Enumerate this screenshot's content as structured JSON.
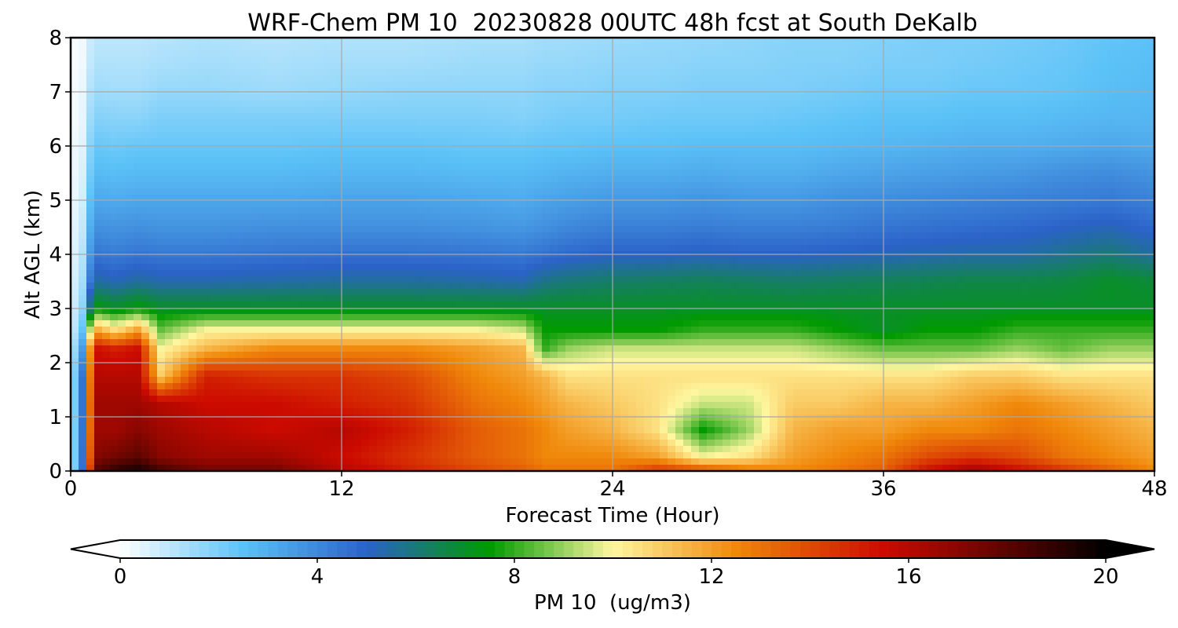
{
  "chart_data": {
    "type": "heatmap",
    "title": "WRF-Chem PM 10  20230828 00UTC 48h fcst at South DeKalb",
    "xlabel": "Forecast Time (Hour)",
    "ylabel": "Alt AGL (km)",
    "xlim": [
      0,
      48
    ],
    "ylim": [
      0,
      8
    ],
    "xticks": [
      "0",
      "12",
      "24",
      "36",
      "48"
    ],
    "yticks": [
      "0",
      "1",
      "2",
      "3",
      "4",
      "5",
      "6",
      "7",
      "8"
    ],
    "grid": true,
    "x_hours": [
      0,
      0.5,
      1,
      2,
      3,
      4,
      6,
      9,
      12,
      15,
      18,
      20,
      21,
      22,
      24,
      26,
      28,
      30,
      32,
      34,
      36,
      38,
      40,
      42,
      44,
      46,
      48
    ],
    "y_km": [
      0,
      0.25,
      0.75,
      1.25,
      1.75,
      2.25,
      2.6,
      3.0,
      3.5,
      4.0,
      4.5,
      5.0,
      5.5,
      6.0,
      6.5,
      7.0,
      7.5,
      8.0
    ],
    "pm10_values": [
      [
        1.0,
        4.0,
        18.0,
        19.0,
        19.5,
        18.5,
        17.5,
        17.5,
        16.0,
        15.0,
        14.0,
        13.5,
        13.0,
        13.0,
        13.0,
        14.5,
        14.0,
        13.0,
        12.5,
        13.0,
        13.5,
        15.5,
        16.5,
        15.5,
        14.5,
        13.5,
        12.5
      ],
      [
        1.0,
        4.0,
        17.0,
        17.5,
        18.0,
        17.0,
        16.5,
        16.5,
        15.5,
        14.5,
        13.5,
        13.0,
        12.5,
        12.5,
        12.5,
        12.0,
        10.0,
        10.5,
        12.0,
        12.5,
        13.0,
        14.0,
        14.5,
        14.0,
        13.0,
        12.5,
        12.0
      ],
      [
        1.0,
        4.0,
        16.5,
        16.5,
        17.0,
        16.5,
        16.0,
        15.5,
        16.0,
        15.0,
        13.5,
        13.0,
        12.5,
        12.0,
        11.5,
        10.5,
        7.5,
        9.0,
        11.5,
        12.0,
        12.0,
        12.5,
        12.5,
        13.0,
        12.5,
        12.0,
        11.5
      ],
      [
        1.0,
        4.0,
        16.5,
        16.5,
        16.5,
        16.0,
        15.5,
        15.5,
        15.0,
        14.5,
        13.0,
        12.5,
        12.0,
        11.5,
        11.0,
        10.5,
        9.5,
        9.5,
        11.0,
        11.0,
        11.5,
        11.5,
        12.0,
        12.5,
        12.0,
        11.5,
        11.0
      ],
      [
        1.0,
        4.0,
        16.0,
        16.0,
        16.0,
        11.0,
        15.0,
        14.5,
        14.5,
        14.0,
        12.5,
        12.0,
        11.5,
        10.5,
        10.5,
        10.5,
        10.5,
        10.5,
        10.5,
        10.5,
        10.5,
        10.5,
        11.0,
        11.0,
        10.5,
        10.5,
        10.5
      ],
      [
        0.8,
        3.0,
        15.5,
        15.0,
        15.5,
        10.0,
        11.5,
        12.5,
        12.5,
        12.5,
        12.0,
        11.5,
        8.0,
        9.0,
        9.5,
        9.5,
        9.5,
        9.5,
        9.5,
        9.0,
        8.5,
        8.5,
        8.5,
        9.0,
        8.5,
        9.0,
        9.0
      ],
      [
        0.6,
        2.0,
        12.0,
        10.5,
        12.0,
        8.5,
        10.0,
        10.0,
        10.0,
        10.0,
        10.0,
        9.5,
        7.5,
        7.5,
        7.5,
        7.5,
        8.0,
        8.0,
        8.0,
        7.5,
        7.0,
        7.5,
        7.5,
        8.0,
        8.0,
        8.0,
        8.0
      ],
      [
        0.5,
        1.5,
        7.5,
        7.0,
        7.5,
        7.0,
        7.0,
        7.0,
        7.0,
        7.0,
        7.0,
        7.0,
        7.0,
        7.0,
        7.0,
        7.0,
        7.0,
        7.0,
        7.0,
        7.0,
        7.0,
        7.0,
        7.0,
        7.0,
        7.0,
        7.0,
        7.0
      ],
      [
        0.4,
        1.2,
        5.5,
        5.2,
        5.5,
        5.3,
        5.3,
        5.4,
        5.5,
        5.5,
        5.4,
        5.3,
        5.8,
        6.0,
        6.2,
        6.3,
        6.4,
        6.3,
        6.2,
        6.3,
        6.4,
        6.5,
        6.6,
        6.6,
        6.7,
        7.0,
        6.8
      ],
      [
        0.3,
        1.0,
        4.5,
        4.3,
        4.5,
        4.4,
        4.4,
        4.5,
        4.6,
        4.6,
        4.5,
        4.4,
        4.6,
        4.8,
        5.0,
        5.0,
        5.1,
        5.0,
        5.0,
        5.1,
        5.2,
        5.3,
        5.4,
        5.4,
        5.7,
        6.0,
        5.5
      ],
      [
        0.3,
        0.8,
        3.8,
        3.7,
        3.8,
        3.7,
        3.7,
        3.8,
        3.8,
        3.8,
        3.7,
        3.6,
        3.8,
        4.0,
        4.2,
        4.2,
        4.3,
        4.2,
        4.2,
        4.3,
        4.5,
        4.6,
        4.7,
        4.8,
        5.0,
        5.2,
        4.8
      ],
      [
        0.2,
        0.6,
        3.2,
        3.1,
        3.2,
        3.2,
        3.2,
        3.2,
        3.3,
        3.3,
        3.2,
        3.1,
        3.3,
        3.4,
        3.6,
        3.6,
        3.7,
        3.6,
        3.6,
        3.8,
        3.9,
        4.0,
        4.1,
        4.2,
        4.3,
        4.4,
        4.2
      ],
      [
        0.2,
        0.5,
        2.7,
        2.6,
        2.7,
        2.7,
        2.7,
        2.7,
        2.8,
        2.8,
        2.7,
        2.7,
        2.8,
        2.9,
        3.0,
        3.0,
        3.1,
        3.0,
        3.0,
        3.2,
        3.3,
        3.4,
        3.5,
        3.6,
        3.8,
        3.9,
        3.7
      ],
      [
        0.2,
        0.4,
        2.3,
        2.2,
        2.3,
        2.3,
        2.3,
        2.3,
        2.4,
        2.4,
        2.3,
        2.3,
        2.4,
        2.4,
        2.5,
        2.5,
        2.6,
        2.6,
        2.6,
        2.7,
        2.8,
        2.9,
        3.0,
        3.0,
        3.1,
        3.2,
        3.1
      ],
      [
        0.1,
        0.3,
        1.9,
        1.8,
        1.8,
        2.0,
        2.0,
        2.0,
        2.0,
        2.0,
        2.0,
        1.9,
        2.0,
        2.1,
        2.1,
        2.2,
        2.2,
        2.2,
        2.3,
        2.4,
        2.5,
        2.5,
        2.6,
        2.6,
        2.7,
        2.8,
        2.8
      ],
      [
        0.1,
        0.3,
        1.5,
        1.4,
        1.4,
        1.6,
        1.6,
        1.5,
        1.6,
        1.7,
        1.7,
        1.7,
        1.8,
        1.8,
        1.9,
        1.9,
        2.0,
        2.0,
        2.0,
        2.1,
        2.2,
        2.2,
        2.3,
        2.3,
        2.4,
        2.6,
        2.7
      ],
      [
        0.1,
        0.2,
        1.2,
        1.2,
        1.2,
        1.3,
        1.4,
        1.3,
        1.4,
        1.4,
        1.5,
        1.5,
        1.6,
        1.6,
        1.7,
        1.7,
        1.8,
        1.8,
        1.9,
        1.9,
        2.0,
        2.0,
        2.1,
        2.2,
        2.3,
        2.5,
        2.6
      ],
      [
        0.1,
        0.2,
        1.0,
        1.0,
        1.0,
        1.1,
        1.2,
        1.1,
        1.2,
        1.2,
        1.3,
        1.3,
        1.4,
        1.4,
        1.5,
        1.6,
        1.6,
        1.7,
        1.8,
        1.8,
        1.9,
        2.0,
        2.0,
        2.1,
        2.2,
        2.4,
        2.5
      ]
    ],
    "colorbar": {
      "label": "PM 10  (ug/m3)",
      "ticks": [
        "0",
        "4",
        "8",
        "12",
        "16",
        "20"
      ],
      "range": [
        0,
        20
      ],
      "extend": "both",
      "orientation": "horizontal",
      "colors": [
        "#ffffff",
        "#5bc2f7",
        "#2b62c8",
        "#009a00",
        "#fff7a0",
        "#f0880a",
        "#cc0a00",
        "#000000"
      ],
      "color_stops": [
        0,
        2.5,
        5,
        7.5,
        10,
        12.5,
        15.5,
        20
      ]
    }
  }
}
